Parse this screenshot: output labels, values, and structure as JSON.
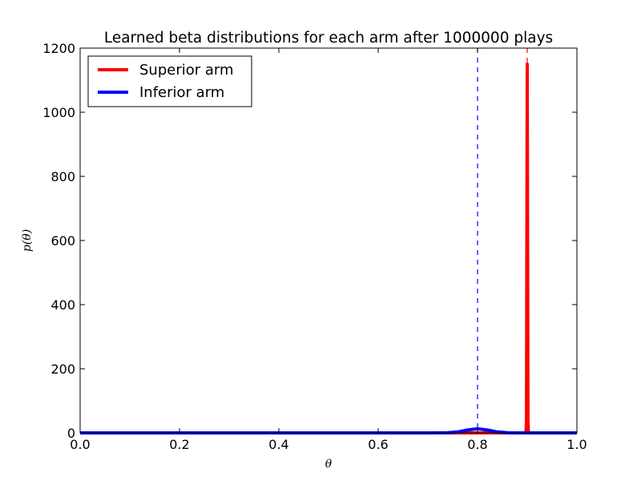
{
  "chart_data": {
    "type": "line",
    "title": "Learned beta distributions for each arm after 1000000 plays",
    "xlabel": "θ",
    "ylabel": "p(θ)",
    "xlim": [
      0.0,
      1.0
    ],
    "ylim": [
      0,
      1200
    ],
    "x_ticks": [
      "0.0",
      "0.2",
      "0.4",
      "0.6",
      "0.8",
      "1.0"
    ],
    "y_ticks": [
      "0",
      "200",
      "400",
      "600",
      "800",
      "1000",
      "1200"
    ],
    "grid": false,
    "legend_placement": "top-left",
    "series": [
      {
        "name": "Superior arm",
        "color": "#ff0000",
        "mean": 0.9,
        "peak": 1150,
        "x": [
          0.0,
          0.85,
          0.89,
          0.8975,
          0.8985,
          0.8995,
          0.9,
          0.9005,
          0.9015,
          0.9025,
          0.91,
          1.0
        ],
        "y": [
          0,
          0,
          0,
          0,
          40,
          800,
          1150,
          800,
          40,
          0,
          0,
          0
        ]
      },
      {
        "name": "Inferior arm",
        "color": "#0000ff",
        "mean": 0.8,
        "peak": 13,
        "x": [
          0.0,
          0.6,
          0.7,
          0.74,
          0.76,
          0.78,
          0.8,
          0.82,
          0.84,
          0.86,
          0.88,
          0.9,
          1.0
        ],
        "y": [
          0,
          0,
          0,
          0.5,
          3,
          9,
          13,
          9,
          3,
          0.5,
          0,
          0,
          0
        ]
      }
    ],
    "reference_lines": [
      {
        "x": 0.8,
        "color": "#0000ff",
        "style": "dashed"
      },
      {
        "x": 0.9,
        "color": "#ff0000",
        "style": "dashed"
      }
    ]
  }
}
